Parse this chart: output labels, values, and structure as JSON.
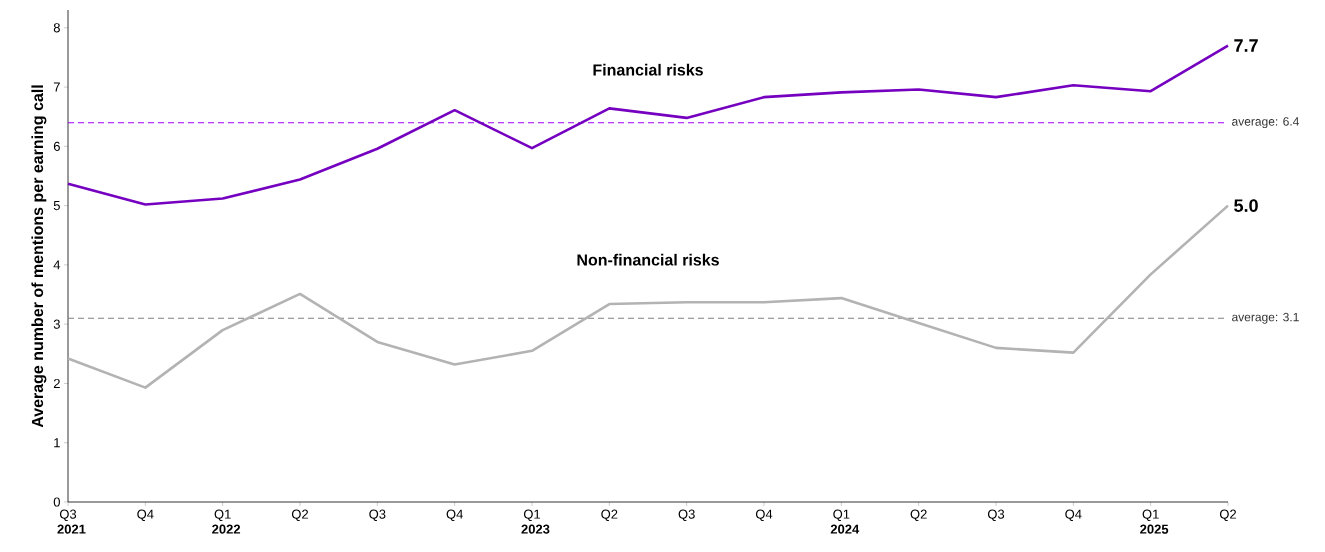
{
  "chart_data": {
    "type": "line",
    "ylabel": "Average number of mentions per earning call",
    "categories": [
      "Q3 **2021**",
      "Q4",
      "Q1 **2022**",
      "Q2",
      "Q3",
      "Q4",
      "Q1 **2023**",
      "Q2",
      "Q3",
      "Q4",
      "Q1 **2024**",
      "Q2",
      "Q3",
      "Q4",
      "Q1 **2025**",
      "Q2"
    ],
    "series": [
      {
        "name": "Financial risks",
        "color": "#7500c0",
        "values": [
          5.37,
          5.02,
          5.12,
          5.44,
          5.96,
          6.61,
          5.97,
          6.64,
          6.48,
          6.83,
          6.91,
          6.96,
          6.83,
          7.03,
          6.93,
          7.7
        ],
        "value_labels": [
          null,
          null,
          null,
          null,
          null,
          null,
          null,
          null,
          null,
          null,
          null,
          null,
          null,
          null,
          null,
          "7.7"
        ]
      },
      {
        "name": "Non-financial risks",
        "color": "#b3b3b3",
        "values": [
          2.42,
          1.93,
          2.9,
          3.51,
          2.7,
          2.32,
          2.55,
          3.34,
          3.37,
          3.37,
          3.44,
          3.02,
          2.6,
          2.52,
          3.84,
          5.0
        ],
        "value_labels": [
          null,
          null,
          null,
          null,
          null,
          null,
          null,
          null,
          null,
          null,
          null,
          null,
          null,
          null,
          null,
          "5.0"
        ]
      }
    ],
    "ref_lines": [
      {
        "axis": "y",
        "value": 6.4,
        "label": "average: 6.4",
        "color": "#a100ff",
        "line_style": "dashed"
      },
      {
        "axis": "y",
        "value": 3.1,
        "label": "average: 3.1",
        "color": "#808080",
        "line_style": "dashed"
      }
    ],
    "ylim": [
      0,
      8.3
    ],
    "yticks": [
      0,
      1,
      2,
      3,
      4,
      5,
      6,
      7,
      8
    ],
    "grid": false,
    "legend": false,
    "marker": "none",
    "line_style": "solid"
  }
}
